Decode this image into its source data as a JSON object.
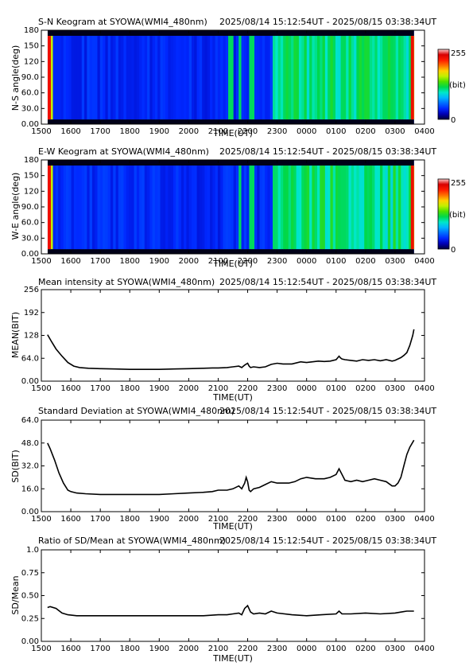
{
  "colors": {
    "colormap": [
      "#00003a",
      "#0000b4",
      "#0028ff",
      "#006cff",
      "#00b4ff",
      "#00e8c8",
      "#00d84a",
      "#4ce000",
      "#c0f000",
      "#ffd000",
      "#ff7000",
      "#ff1a00",
      "#d80000",
      "#ffc8c8"
    ],
    "line": "#000000",
    "frame": "#000000"
  },
  "chart_data": [
    {
      "type": "heatmap",
      "title": "S-N Keogram at SYOWA(WMI4_480nm)",
      "time_range_text": "2025/08/14 15:12:54UT - 2025/08/15 03:38:34UT",
      "xlabel": "TIME(UT)",
      "ylabel": "N-S angle(deg)",
      "x_ticks": [
        "1500",
        "1600",
        "1700",
        "1800",
        "1900",
        "2000",
        "2100",
        "2200",
        "2300",
        "0000",
        "0100",
        "0200",
        "0300",
        "0400"
      ],
      "y_ticks": [
        "0.00",
        "30.0",
        "60.0",
        "90.0",
        "120",
        "150",
        "180"
      ],
      "xlim_hours": [
        15,
        28
      ],
      "data_hours": [
        15.215,
        27.643
      ],
      "ylim": [
        0,
        180
      ],
      "colorbar": {
        "max_label": "255",
        "unit_label": "(bit)",
        "min_label": "0",
        "range": [
          0,
          255
        ]
      },
      "features": {
        "night_onset_hour": 22.8,
        "bright_arcs_hours": [
          21.4,
          21.7,
          22.1,
          23.2,
          24.9,
          25.2,
          26.0,
          26.6
        ],
        "bright_edges": [
          "start",
          "end"
        ]
      }
    },
    {
      "type": "heatmap",
      "title": "E-W Keogram at SYOWA(WMI4_480nm)",
      "time_range_text": "2025/08/14 15:12:54UT - 2025/08/15 03:38:34UT",
      "xlabel": "TIME(UT)",
      "ylabel": "W-E angle(deg)",
      "x_ticks": [
        "1500",
        "1600",
        "1700",
        "1800",
        "1900",
        "2000",
        "2100",
        "2200",
        "2300",
        "0000",
        "0100",
        "0200",
        "0300",
        "0400"
      ],
      "y_ticks": [
        "0.00",
        "30.0",
        "60.0",
        "90.0",
        "120",
        "150",
        "180"
      ],
      "xlim_hours": [
        15,
        28
      ],
      "data_hours": [
        15.215,
        27.643
      ],
      "ylim": [
        0,
        180
      ],
      "colorbar": {
        "max_label": "255",
        "unit_label": "(bit)",
        "min_label": "0",
        "range": [
          0,
          255
        ]
      },
      "features": {
        "night_onset_hour": 22.8,
        "bright_arcs_hours": [
          21.7,
          22.1,
          23.2,
          25.2,
          26.0
        ],
        "bright_edges": [
          "start",
          "end"
        ]
      }
    },
    {
      "type": "line",
      "title": "Mean intensity at SYOWA(WMI4_480nm)",
      "time_range_text": "2025/08/14 15:12:54UT - 2025/08/15 03:38:34UT",
      "xlabel": "TIME(UT)",
      "ylabel": "MEAN(BIT)",
      "x_ticks": [
        "1500",
        "1600",
        "1700",
        "1800",
        "1900",
        "2000",
        "2100",
        "2200",
        "2300",
        "0000",
        "0100",
        "0200",
        "0300",
        "0400"
      ],
      "y_ticks": [
        "0.00",
        "64.0",
        "128",
        "192",
        "256"
      ],
      "xlim_hours": [
        15,
        28
      ],
      "ylim": [
        0,
        256
      ],
      "x": [
        15.21,
        15.35,
        15.5,
        15.7,
        15.9,
        16.1,
        16.3,
        16.6,
        17.0,
        17.5,
        18.0,
        18.5,
        19.0,
        19.5,
        20.0,
        20.5,
        20.8,
        21.0,
        21.3,
        21.5,
        21.7,
        21.8,
        21.9,
        22.0,
        22.05,
        22.1,
        22.2,
        22.4,
        22.6,
        22.8,
        23.0,
        23.2,
        23.5,
        23.8,
        24.0,
        24.2,
        24.4,
        24.6,
        24.8,
        25.0,
        25.1,
        25.15,
        25.2,
        25.3,
        25.5,
        25.7,
        25.9,
        26.1,
        26.3,
        26.5,
        26.7,
        26.9,
        27.0,
        27.1,
        27.2,
        27.3,
        27.4,
        27.5,
        27.6,
        27.64
      ],
      "y": [
        130,
        110,
        90,
        70,
        52,
        42,
        38,
        36,
        35,
        34,
        33,
        33,
        33,
        34,
        35,
        36,
        37,
        37,
        38,
        40,
        42,
        38,
        45,
        50,
        42,
        38,
        40,
        38,
        40,
        47,
        50,
        48,
        48,
        54,
        52,
        54,
        56,
        55,
        56,
        60,
        70,
        65,
        62,
        60,
        58,
        56,
        60,
        58,
        60,
        57,
        60,
        56,
        58,
        62,
        66,
        72,
        80,
        100,
        128,
        145
      ]
    },
    {
      "type": "line",
      "title": "Standard Deviation at SYOWA(WMI4_480nm)",
      "time_range_text": "2025/08/14 15:12:54UT - 2025/08/15 03:38:34UT",
      "xlabel": "TIME(UT)",
      "ylabel": "SD(BIT)",
      "x_ticks": [
        "1500",
        "1600",
        "1700",
        "1800",
        "1900",
        "2000",
        "2100",
        "2200",
        "2300",
        "0000",
        "0100",
        "0200",
        "0300",
        "0400"
      ],
      "y_ticks": [
        "0.00",
        "16.0",
        "32.0",
        "48.0",
        "64.0"
      ],
      "xlim_hours": [
        15,
        28
      ],
      "ylim": [
        0,
        64
      ],
      "x": [
        15.21,
        15.3,
        15.45,
        15.6,
        15.75,
        15.9,
        16.0,
        16.2,
        16.5,
        17.0,
        17.5,
        18.0,
        18.5,
        19.0,
        19.5,
        20.0,
        20.5,
        20.8,
        21.0,
        21.3,
        21.5,
        21.7,
        21.8,
        21.9,
        21.95,
        22.0,
        22.05,
        22.1,
        22.2,
        22.4,
        22.6,
        22.8,
        23.0,
        23.2,
        23.4,
        23.6,
        23.8,
        24.0,
        24.3,
        24.6,
        24.8,
        25.0,
        25.1,
        25.2,
        25.3,
        25.5,
        25.7,
        25.9,
        26.1,
        26.3,
        26.5,
        26.7,
        26.9,
        27.0,
        27.1,
        27.2,
        27.3,
        27.4,
        27.5,
        27.64
      ],
      "y": [
        48,
        44,
        36,
        27,
        20,
        15,
        14,
        13,
        12.5,
        12,
        12,
        12,
        12,
        12,
        12.5,
        13,
        13.5,
        14,
        15,
        15,
        16,
        18,
        16,
        20,
        24,
        21,
        15,
        14,
        16,
        17,
        19,
        21,
        20,
        20,
        20,
        21,
        23,
        24,
        23,
        23,
        24,
        26,
        30,
        26,
        22,
        21,
        22,
        21,
        22,
        23,
        22,
        21,
        18,
        18,
        20,
        24,
        32,
        40,
        45,
        50
      ]
    },
    {
      "type": "line",
      "title": "Ratio of SD/Mean at SYOWA(WMI4_480nm)",
      "time_range_text": "2025/08/14 15:12:54UT - 2025/08/15 03:38:34UT",
      "xlabel": "TIME(UT)",
      "ylabel": "SD/Mean",
      "x_ticks": [
        "1500",
        "1600",
        "1700",
        "1800",
        "1900",
        "2000",
        "2100",
        "2200",
        "2300",
        "0000",
        "0100",
        "0200",
        "0300",
        "0400"
      ],
      "y_ticks": [
        "0.00",
        "0.25",
        "0.50",
        "0.75",
        "1.0"
      ],
      "xlim_hours": [
        15,
        28
      ],
      "ylim": [
        0,
        1.0
      ],
      "x": [
        15.21,
        15.3,
        15.5,
        15.7,
        15.9,
        16.2,
        16.6,
        17.0,
        17.5,
        18.0,
        18.5,
        19.0,
        19.5,
        20.0,
        20.5,
        21.0,
        21.3,
        21.5,
        21.7,
        21.8,
        21.9,
        22.0,
        22.1,
        22.2,
        22.4,
        22.6,
        22.8,
        23.0,
        23.5,
        24.0,
        24.5,
        25.0,
        25.1,
        25.2,
        25.5,
        26.0,
        26.5,
        27.0,
        27.2,
        27.4,
        27.64
      ],
      "y": [
        0.37,
        0.38,
        0.36,
        0.31,
        0.29,
        0.28,
        0.28,
        0.28,
        0.28,
        0.28,
        0.28,
        0.28,
        0.28,
        0.28,
        0.28,
        0.29,
        0.29,
        0.3,
        0.31,
        0.29,
        0.36,
        0.39,
        0.32,
        0.3,
        0.31,
        0.3,
        0.33,
        0.31,
        0.29,
        0.28,
        0.29,
        0.3,
        0.33,
        0.3,
        0.3,
        0.31,
        0.3,
        0.31,
        0.32,
        0.33,
        0.33
      ]
    }
  ]
}
